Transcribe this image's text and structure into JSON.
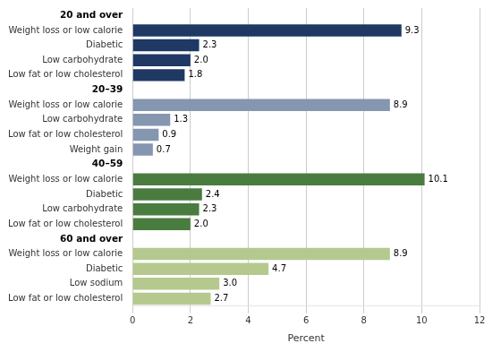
{
  "chart_data": {
    "type": "bar",
    "orientation": "horizontal",
    "xlabel": "Percent",
    "xlim": [
      0,
      12
    ],
    "xticks": [
      0,
      2,
      4,
      6,
      8,
      10,
      12
    ],
    "grid": true,
    "data_labels": true,
    "groups": [
      {
        "label": "20 and over",
        "color": "#1f3864",
        "categories": [
          "Weight loss or low calorie",
          "Diabetic",
          "Low carbohydrate",
          "Low fat or low cholesterol"
        ],
        "values": [
          9.3,
          2.3,
          2.0,
          1.8
        ],
        "value_labels": [
          "9.3",
          "2.3",
          "2.0",
          "1.8"
        ]
      },
      {
        "label": "20–39",
        "color": "#8496b0",
        "categories": [
          "Weight loss or low calorie",
          "Low carbohydrate",
          "Low fat or low cholesterol",
          "Weight gain"
        ],
        "values": [
          8.9,
          1.3,
          0.9,
          0.7
        ],
        "value_labels": [
          "8.9",
          "1.3",
          "0.9",
          "0.7"
        ]
      },
      {
        "label": "40–59",
        "color": "#4a7c3f",
        "categories": [
          "Weight loss or low calorie",
          "Diabetic",
          "Low carbohydrate",
          "Low fat or low cholesterol"
        ],
        "values": [
          10.1,
          2.4,
          2.3,
          2.0
        ],
        "value_labels": [
          "10.1",
          "2.4",
          "2.3",
          "2.0"
        ]
      },
      {
        "label": "60 and over",
        "color": "#b5c98e",
        "categories": [
          "Weight loss or low calorie",
          "Diabetic",
          "Low sodium",
          "Low fat or low cholesterol"
        ],
        "values": [
          8.9,
          4.7,
          3.0,
          2.7
        ],
        "value_labels": [
          "8.9",
          "4.7",
          "3.0",
          "2.7"
        ]
      }
    ]
  }
}
